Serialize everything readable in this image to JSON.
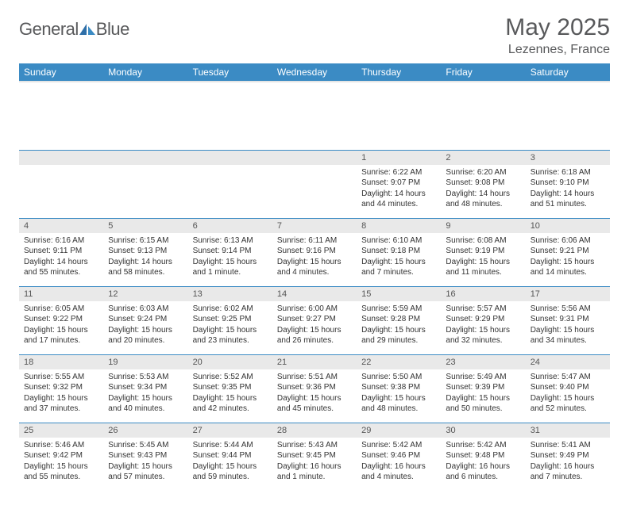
{
  "brand": {
    "part1": "General",
    "part2": "Blue"
  },
  "title": "May 2025",
  "location": "Lezennes, France",
  "colors": {
    "header_bg": "#3b8bc4",
    "header_text": "#ffffff",
    "border": "#3b8bc4",
    "shade": "#e9e9e9",
    "text": "#333333",
    "muted": "#58595b"
  },
  "dayHeaders": [
    "Sunday",
    "Monday",
    "Tuesday",
    "Wednesday",
    "Thursday",
    "Friday",
    "Saturday"
  ],
  "weeks": [
    [
      {
        "n": "",
        "s": "",
        "ss": "",
        "d": ""
      },
      {
        "n": "",
        "s": "",
        "ss": "",
        "d": ""
      },
      {
        "n": "",
        "s": "",
        "ss": "",
        "d": ""
      },
      {
        "n": "",
        "s": "",
        "ss": "",
        "d": ""
      },
      {
        "n": "1",
        "s": "Sunrise: 6:22 AM",
        "ss": "Sunset: 9:07 PM",
        "d": "Daylight: 14 hours and 44 minutes."
      },
      {
        "n": "2",
        "s": "Sunrise: 6:20 AM",
        "ss": "Sunset: 9:08 PM",
        "d": "Daylight: 14 hours and 48 minutes."
      },
      {
        "n": "3",
        "s": "Sunrise: 6:18 AM",
        "ss": "Sunset: 9:10 PM",
        "d": "Daylight: 14 hours and 51 minutes."
      }
    ],
    [
      {
        "n": "4",
        "s": "Sunrise: 6:16 AM",
        "ss": "Sunset: 9:11 PM",
        "d": "Daylight: 14 hours and 55 minutes."
      },
      {
        "n": "5",
        "s": "Sunrise: 6:15 AM",
        "ss": "Sunset: 9:13 PM",
        "d": "Daylight: 14 hours and 58 minutes."
      },
      {
        "n": "6",
        "s": "Sunrise: 6:13 AM",
        "ss": "Sunset: 9:14 PM",
        "d": "Daylight: 15 hours and 1 minute."
      },
      {
        "n": "7",
        "s": "Sunrise: 6:11 AM",
        "ss": "Sunset: 9:16 PM",
        "d": "Daylight: 15 hours and 4 minutes."
      },
      {
        "n": "8",
        "s": "Sunrise: 6:10 AM",
        "ss": "Sunset: 9:18 PM",
        "d": "Daylight: 15 hours and 7 minutes."
      },
      {
        "n": "9",
        "s": "Sunrise: 6:08 AM",
        "ss": "Sunset: 9:19 PM",
        "d": "Daylight: 15 hours and 11 minutes."
      },
      {
        "n": "10",
        "s": "Sunrise: 6:06 AM",
        "ss": "Sunset: 9:21 PM",
        "d": "Daylight: 15 hours and 14 minutes."
      }
    ],
    [
      {
        "n": "11",
        "s": "Sunrise: 6:05 AM",
        "ss": "Sunset: 9:22 PM",
        "d": "Daylight: 15 hours and 17 minutes."
      },
      {
        "n": "12",
        "s": "Sunrise: 6:03 AM",
        "ss": "Sunset: 9:24 PM",
        "d": "Daylight: 15 hours and 20 minutes."
      },
      {
        "n": "13",
        "s": "Sunrise: 6:02 AM",
        "ss": "Sunset: 9:25 PM",
        "d": "Daylight: 15 hours and 23 minutes."
      },
      {
        "n": "14",
        "s": "Sunrise: 6:00 AM",
        "ss": "Sunset: 9:27 PM",
        "d": "Daylight: 15 hours and 26 minutes."
      },
      {
        "n": "15",
        "s": "Sunrise: 5:59 AM",
        "ss": "Sunset: 9:28 PM",
        "d": "Daylight: 15 hours and 29 minutes."
      },
      {
        "n": "16",
        "s": "Sunrise: 5:57 AM",
        "ss": "Sunset: 9:29 PM",
        "d": "Daylight: 15 hours and 32 minutes."
      },
      {
        "n": "17",
        "s": "Sunrise: 5:56 AM",
        "ss": "Sunset: 9:31 PM",
        "d": "Daylight: 15 hours and 34 minutes."
      }
    ],
    [
      {
        "n": "18",
        "s": "Sunrise: 5:55 AM",
        "ss": "Sunset: 9:32 PM",
        "d": "Daylight: 15 hours and 37 minutes."
      },
      {
        "n": "19",
        "s": "Sunrise: 5:53 AM",
        "ss": "Sunset: 9:34 PM",
        "d": "Daylight: 15 hours and 40 minutes."
      },
      {
        "n": "20",
        "s": "Sunrise: 5:52 AM",
        "ss": "Sunset: 9:35 PM",
        "d": "Daylight: 15 hours and 42 minutes."
      },
      {
        "n": "21",
        "s": "Sunrise: 5:51 AM",
        "ss": "Sunset: 9:36 PM",
        "d": "Daylight: 15 hours and 45 minutes."
      },
      {
        "n": "22",
        "s": "Sunrise: 5:50 AM",
        "ss": "Sunset: 9:38 PM",
        "d": "Daylight: 15 hours and 48 minutes."
      },
      {
        "n": "23",
        "s": "Sunrise: 5:49 AM",
        "ss": "Sunset: 9:39 PM",
        "d": "Daylight: 15 hours and 50 minutes."
      },
      {
        "n": "24",
        "s": "Sunrise: 5:47 AM",
        "ss": "Sunset: 9:40 PM",
        "d": "Daylight: 15 hours and 52 minutes."
      }
    ],
    [
      {
        "n": "25",
        "s": "Sunrise: 5:46 AM",
        "ss": "Sunset: 9:42 PM",
        "d": "Daylight: 15 hours and 55 minutes."
      },
      {
        "n": "26",
        "s": "Sunrise: 5:45 AM",
        "ss": "Sunset: 9:43 PM",
        "d": "Daylight: 15 hours and 57 minutes."
      },
      {
        "n": "27",
        "s": "Sunrise: 5:44 AM",
        "ss": "Sunset: 9:44 PM",
        "d": "Daylight: 15 hours and 59 minutes."
      },
      {
        "n": "28",
        "s": "Sunrise: 5:43 AM",
        "ss": "Sunset: 9:45 PM",
        "d": "Daylight: 16 hours and 1 minute."
      },
      {
        "n": "29",
        "s": "Sunrise: 5:42 AM",
        "ss": "Sunset: 9:46 PM",
        "d": "Daylight: 16 hours and 4 minutes."
      },
      {
        "n": "30",
        "s": "Sunrise: 5:42 AM",
        "ss": "Sunset: 9:48 PM",
        "d": "Daylight: 16 hours and 6 minutes."
      },
      {
        "n": "31",
        "s": "Sunrise: 5:41 AM",
        "ss": "Sunset: 9:49 PM",
        "d": "Daylight: 16 hours and 7 minutes."
      }
    ]
  ]
}
